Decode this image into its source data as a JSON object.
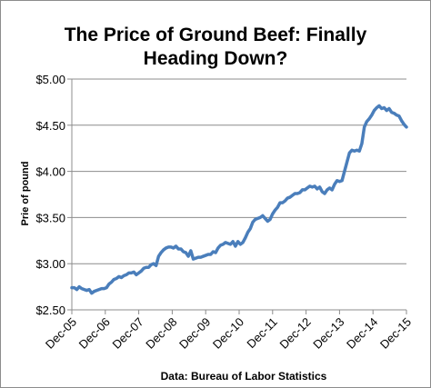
{
  "chart_data": {
    "type": "line",
    "title_line1": "The Price of Ground Beef:  Finally",
    "title_line2": "Heading Down?",
    "ylabel": "Prie of pound",
    "source": "Data: Bureau of Labor Statistics",
    "ylim": [
      2.5,
      5.0
    ],
    "yticks": [
      2.5,
      3.0,
      3.5,
      4.0,
      4.5,
      5.0
    ],
    "ytick_labels": [
      "$2.50",
      "$3.00",
      "$3.50",
      "$4.00",
      "$4.50",
      "$5.00"
    ],
    "xticks": [
      "Dec-05",
      "Dec-06",
      "Dec-07",
      "Dec-08",
      "Dec-09",
      "Dec-10",
      "Dec-11",
      "Dec-12",
      "Dec-13",
      "Dec-14",
      "Dec-15"
    ],
    "grid": "horizontal",
    "legend": "none",
    "line_color": "#4a7ebb",
    "series": [
      {
        "x_start": "Dec-05",
        "frequency": "monthly",
        "values": [
          2.74,
          2.74,
          2.72,
          2.75,
          2.73,
          2.72,
          2.71,
          2.72,
          2.68,
          2.7,
          2.71,
          2.72,
          2.73,
          2.73,
          2.74,
          2.78,
          2.8,
          2.83,
          2.84,
          2.86,
          2.85,
          2.87,
          2.88,
          2.9,
          2.9,
          2.91,
          2.88,
          2.9,
          2.92,
          2.95,
          2.96,
          2.96,
          2.99,
          3.0,
          2.98,
          3.08,
          3.12,
          3.15,
          3.17,
          3.18,
          3.18,
          3.17,
          3.19,
          3.16,
          3.16,
          3.13,
          3.12,
          3.08,
          3.14,
          3.05,
          3.06,
          3.07,
          3.07,
          3.08,
          3.09,
          3.1,
          3.1,
          3.13,
          3.12,
          3.17,
          3.2,
          3.21,
          3.23,
          3.22,
          3.21,
          3.24,
          3.19,
          3.24,
          3.21,
          3.23,
          3.28,
          3.34,
          3.38,
          3.45,
          3.48,
          3.49,
          3.5,
          3.52,
          3.49,
          3.46,
          3.48,
          3.54,
          3.58,
          3.61,
          3.66,
          3.66,
          3.68,
          3.71,
          3.72,
          3.74,
          3.76,
          3.76,
          3.77,
          3.8,
          3.8,
          3.82,
          3.84,
          3.83,
          3.84,
          3.81,
          3.83,
          3.78,
          3.76,
          3.8,
          3.82,
          3.8,
          3.86,
          3.9,
          3.89,
          3.9,
          4.0,
          4.1,
          4.2,
          4.23,
          4.22,
          4.23,
          4.22,
          4.3,
          4.48,
          4.54,
          4.57,
          4.61,
          4.66,
          4.69,
          4.71,
          4.68,
          4.69,
          4.66,
          4.68,
          4.64,
          4.63,
          4.61,
          4.6,
          4.55,
          4.51,
          4.48
        ]
      }
    ]
  }
}
